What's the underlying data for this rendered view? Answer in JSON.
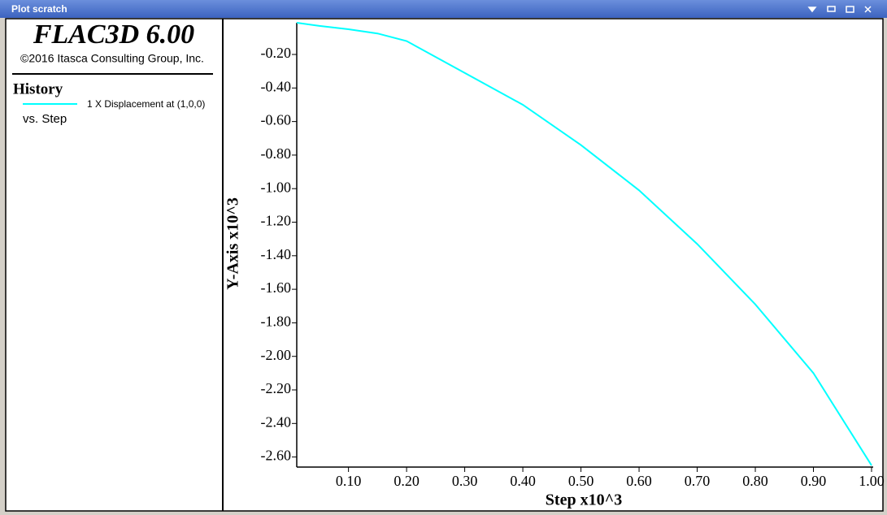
{
  "window": {
    "title": "Plot scratch"
  },
  "panel": {
    "product": "FLAC3D 6.00",
    "copyright": "©2016 Itasca Consulting Group, Inc.",
    "section": "History",
    "versus": "vs. Step"
  },
  "chart_data": {
    "type": "line",
    "xlabel": "Step x10^3",
    "ylabel": "Y-Axis x10^3",
    "x": [
      0.011,
      0.05,
      0.1,
      0.15,
      0.2,
      0.3,
      0.4,
      0.5,
      0.6,
      0.7,
      0.8,
      0.9,
      1.0
    ],
    "series": [
      {
        "name": "1 X Displacement at (1,0,0)",
        "color": "#00ffff",
        "values": [
          -0.011,
          -0.03,
          -0.05,
          -0.075,
          -0.12,
          -0.31,
          -0.5,
          -0.74,
          -1.01,
          -1.33,
          -1.69,
          -2.1,
          -2.65
        ]
      }
    ],
    "xlim": [
      0.011,
      1.0
    ],
    "ylim": [
      -2.66,
      -0.011
    ],
    "xticks": [
      {
        "value": 0.1,
        "label": "0.10"
      },
      {
        "value": 0.2,
        "label": "0.20"
      },
      {
        "value": 0.3,
        "label": "0.30"
      },
      {
        "value": 0.4,
        "label": "0.40"
      },
      {
        "value": 0.5,
        "label": "0.50"
      },
      {
        "value": 0.6,
        "label": "0.60"
      },
      {
        "value": 0.7,
        "label": "0.70"
      },
      {
        "value": 0.8,
        "label": "0.80"
      },
      {
        "value": 0.9,
        "label": "0.90"
      },
      {
        "value": 1.0,
        "label": "1.00"
      }
    ],
    "yticks": [
      {
        "value": -0.2,
        "label": "-0.20"
      },
      {
        "value": -0.4,
        "label": "-0.40"
      },
      {
        "value": -0.6,
        "label": "-0.60"
      },
      {
        "value": -0.8,
        "label": "-0.80"
      },
      {
        "value": -1.0,
        "label": "-1.00"
      },
      {
        "value": -1.2,
        "label": "-1.20"
      },
      {
        "value": -1.4,
        "label": "-1.40"
      },
      {
        "value": -1.6,
        "label": "-1.60"
      },
      {
        "value": -1.8,
        "label": "-1.80"
      },
      {
        "value": -2.0,
        "label": "-2.00"
      },
      {
        "value": -2.2,
        "label": "-2.20"
      },
      {
        "value": -2.4,
        "label": "-2.40"
      },
      {
        "value": -2.6,
        "label": "-2.60"
      }
    ]
  }
}
